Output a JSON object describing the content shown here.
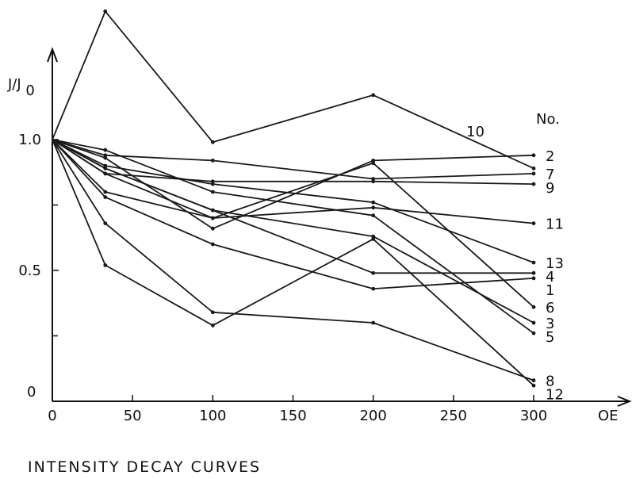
{
  "chart_data": {
    "type": "line",
    "caption": "INTENSITY DECAY CURVES",
    "xlabel": "OE",
    "ylabel": "J/J",
    "ylabel_subscript": "0",
    "legend_title": "No.",
    "xlim": [
      0,
      300
    ],
    "ylim": [
      0,
      1.0
    ],
    "x_ticks": [
      0,
      50,
      100,
      150,
      200,
      250,
      300
    ],
    "x_tick_labels": [
      "0",
      "50",
      "100",
      "150",
      "200",
      "250",
      "300"
    ],
    "y_ticks": [
      0,
      0.5,
      1.0
    ],
    "y_tick_labels": [
      "0",
      "0.5",
      "1.0"
    ],
    "grid": false,
    "x": [
      0,
      33,
      100,
      200,
      300
    ],
    "series": [
      {
        "name": "1",
        "values": [
          1.0,
          0.78,
          0.6,
          0.43,
          0.47
        ]
      },
      {
        "name": "2",
        "values": [
          1.0,
          0.93,
          0.66,
          0.92,
          0.94
        ]
      },
      {
        "name": "3",
        "values": [
          1.0,
          0.89,
          0.73,
          0.63,
          0.3
        ]
      },
      {
        "name": "4",
        "values": [
          1.0,
          0.89,
          0.73,
          0.49,
          0.49
        ]
      },
      {
        "name": "5",
        "values": [
          1.0,
          0.96,
          0.8,
          0.71,
          0.26
        ]
      },
      {
        "name": "6",
        "values": [
          1.0,
          0.87,
          0.7,
          0.91,
          0.36
        ]
      },
      {
        "name": "7",
        "values": [
          1.0,
          0.94,
          0.92,
          0.85,
          0.87
        ]
      },
      {
        "name": "8",
        "values": [
          1.0,
          0.68,
          0.34,
          0.3,
          0.08
        ]
      },
      {
        "name": "9",
        "values": [
          1.0,
          0.87,
          0.84,
          0.84,
          0.83
        ]
      },
      {
        "name": "10",
        "values": [
          1.0,
          1.49,
          0.99,
          1.17,
          0.89
        ]
      },
      {
        "name": "11",
        "values": [
          1.0,
          0.8,
          0.7,
          0.74,
          0.68
        ]
      },
      {
        "name": "12",
        "values": [
          1.0,
          0.52,
          0.29,
          0.62,
          0.06
        ]
      },
      {
        "name": "13",
        "values": [
          1.0,
          0.9,
          0.83,
          0.76,
          0.53
        ]
      }
    ]
  }
}
